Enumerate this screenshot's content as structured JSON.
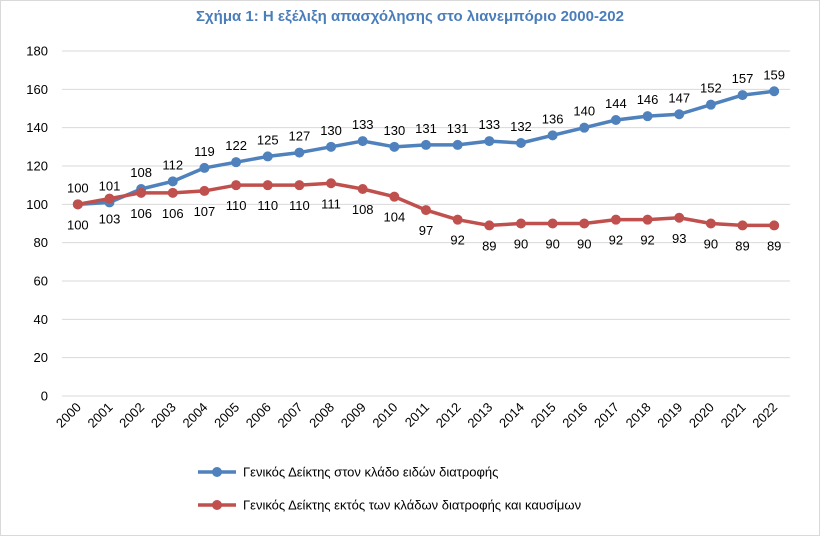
{
  "chart_data": {
    "type": "line",
    "title": "Σχήμα 1: Η εξέλιξη απασχόλησης στο λιανεμπόριο 2000-202",
    "xlabel": "",
    "ylabel": "",
    "ylim": [
      0,
      180
    ],
    "yticks": [
      0,
      20,
      40,
      60,
      80,
      100,
      120,
      140,
      160,
      180
    ],
    "grid": true,
    "legend_position": "bottom",
    "x": [
      "2000",
      "2001",
      "2002",
      "2003",
      "2004",
      "2005",
      "2006",
      "2007",
      "2008",
      "2009",
      "2010",
      "2011",
      "2012",
      "2013",
      "2014",
      "2015",
      "2016",
      "2017",
      "2018",
      "2019",
      "2020",
      "2021",
      "2022"
    ],
    "series": [
      {
        "name": "Γενικός Δείκτης στον κλάδο ειδών διατροφής",
        "color": "#4f81bd",
        "labels_position": "above",
        "values": [
          100,
          101,
          108,
          112,
          119,
          122,
          125,
          127,
          130,
          133,
          130,
          131,
          131,
          133,
          132,
          136,
          140,
          144,
          146,
          147,
          152,
          157,
          159
        ]
      },
      {
        "name": "Γενικός Δείκτης εκτός των κλάδων διατροφής και καυσίμων",
        "color": "#c0504d",
        "labels_position": "below",
        "values": [
          100,
          103,
          106,
          106,
          107,
          110,
          110,
          110,
          111,
          108,
          104,
          97,
          92,
          89,
          90,
          90,
          90,
          92,
          92,
          93,
          90,
          89,
          89
        ]
      }
    ]
  }
}
